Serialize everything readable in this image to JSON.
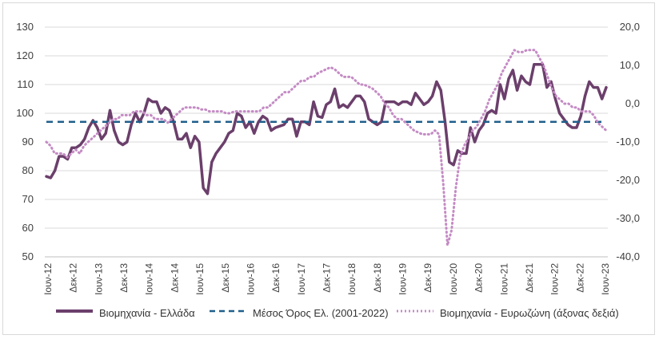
{
  "chart_data": {
    "type": "line",
    "left_axis": {
      "min": 50,
      "max": 130,
      "ticks": [
        "50",
        "60",
        "70",
        "80",
        "90",
        "100",
        "110",
        "120",
        "130"
      ]
    },
    "right_axis": {
      "min": -40,
      "max": 20,
      "ticks": [
        "-40,0",
        "-30,0",
        "-20,0",
        "-10,0",
        "0,0",
        "10,0",
        "20,0"
      ]
    },
    "x_tick_labels": [
      "Ιουν-12",
      "Δεκ-12",
      "Ιουν-13",
      "Δεκ-13",
      "Ιουν-14",
      "Δεκ-14",
      "Ιουν-15",
      "Δεκ-15",
      "Ιουν-16",
      "Δεκ-16",
      "Ιουν-17",
      "Δεκ-17",
      "Ιουν-18",
      "Δεκ-18",
      "Ιουν-19",
      "Δεκ-19",
      "Ιουν-20",
      "Δεκ-20",
      "Ιουν-21",
      "Δεκ-21",
      "Ιουν-22",
      "Δεκ-22",
      "Ιουν-23"
    ],
    "grid": "horizontal",
    "legend_position": "bottom",
    "series": [
      {
        "name": "Βιομηχανία  - Ελλάδα",
        "axis": "left",
        "color": "#6b3f6b",
        "style": "solid",
        "values": [
          78,
          77.5,
          80,
          85,
          85,
          84,
          88,
          88,
          89,
          91,
          95,
          97.5,
          95,
          91,
          93,
          101,
          94,
          90,
          89,
          90,
          96,
          100,
          97,
          100,
          105,
          104,
          104,
          100,
          102,
          101,
          97,
          91,
          91,
          93,
          88,
          92,
          90,
          74,
          72,
          83,
          86,
          88,
          90,
          93,
          94,
          100,
          99,
          95,
          97,
          93,
          97,
          99,
          98,
          94,
          95,
          95.5,
          96,
          98,
          98,
          92,
          97,
          97,
          96,
          104,
          99,
          98.5,
          103,
          104,
          108.5,
          102,
          103,
          102,
          104,
          106,
          106,
          104,
          98,
          97,
          96,
          97,
          104,
          104,
          104,
          103,
          104,
          104,
          103,
          107,
          105,
          103,
          104,
          106,
          111,
          108,
          97,
          83,
          82,
          87,
          86,
          86,
          95,
          90,
          94,
          96,
          100,
          101,
          100,
          110,
          105,
          112,
          115,
          108,
          113,
          111,
          110,
          117,
          117,
          117,
          109,
          111,
          105,
          100,
          98,
          96,
          95,
          95,
          99,
          106,
          111,
          109,
          109,
          105,
          109
        ]
      },
      {
        "name": "Μέσος Όρος Ελ. (2001-2022)",
        "axis": "left",
        "color": "#1f5f8b",
        "style": "dashed",
        "values": [
          97,
          97
        ]
      },
      {
        "name": "Βιομηχανία - Ευρωζώνη (άξονας δεξιά)",
        "axis": "right",
        "color": "#c48bc4",
        "style": "dotted",
        "values": [
          -10,
          -11,
          -13,
          -13,
          -13,
          -14,
          -13,
          -12,
          -13,
          -11,
          -10,
          -9,
          -8,
          -7,
          -6,
          -5,
          -4,
          -4,
          -3,
          -3,
          -3,
          -2,
          -2,
          -2,
          -3,
          -3,
          -4,
          -4,
          -4,
          -5,
          -4,
          -3,
          -2,
          -1,
          -1,
          -1,
          -1,
          -1.5,
          -1.5,
          -2,
          -2,
          -2,
          -2,
          -2.5,
          -2.5,
          -2,
          -2,
          -2,
          -2,
          -2,
          -2,
          -2,
          -1,
          -1,
          0,
          1,
          2,
          3,
          3,
          4,
          5,
          6,
          6,
          7,
          7,
          8,
          8.5,
          9,
          9.5,
          9,
          8,
          7,
          7,
          7,
          6,
          5,
          5,
          4.5,
          4,
          3,
          2,
          0,
          -1,
          -3,
          -4,
          -4,
          -5,
          -6,
          -7,
          -7.5,
          -8,
          -8,
          -8,
          -7,
          -8,
          -21,
          -37,
          -33,
          -22,
          -14,
          -11,
          -9,
          -7,
          -6,
          -4,
          -2,
          1,
          3,
          5,
          8,
          10,
          12,
          14,
          13.5,
          13.5,
          14,
          14,
          14,
          12,
          10,
          7,
          4,
          2,
          1,
          0,
          0,
          -1,
          -1,
          -2,
          -2,
          -2,
          -3,
          -5,
          -6,
          -7
        ]
      }
    ]
  }
}
